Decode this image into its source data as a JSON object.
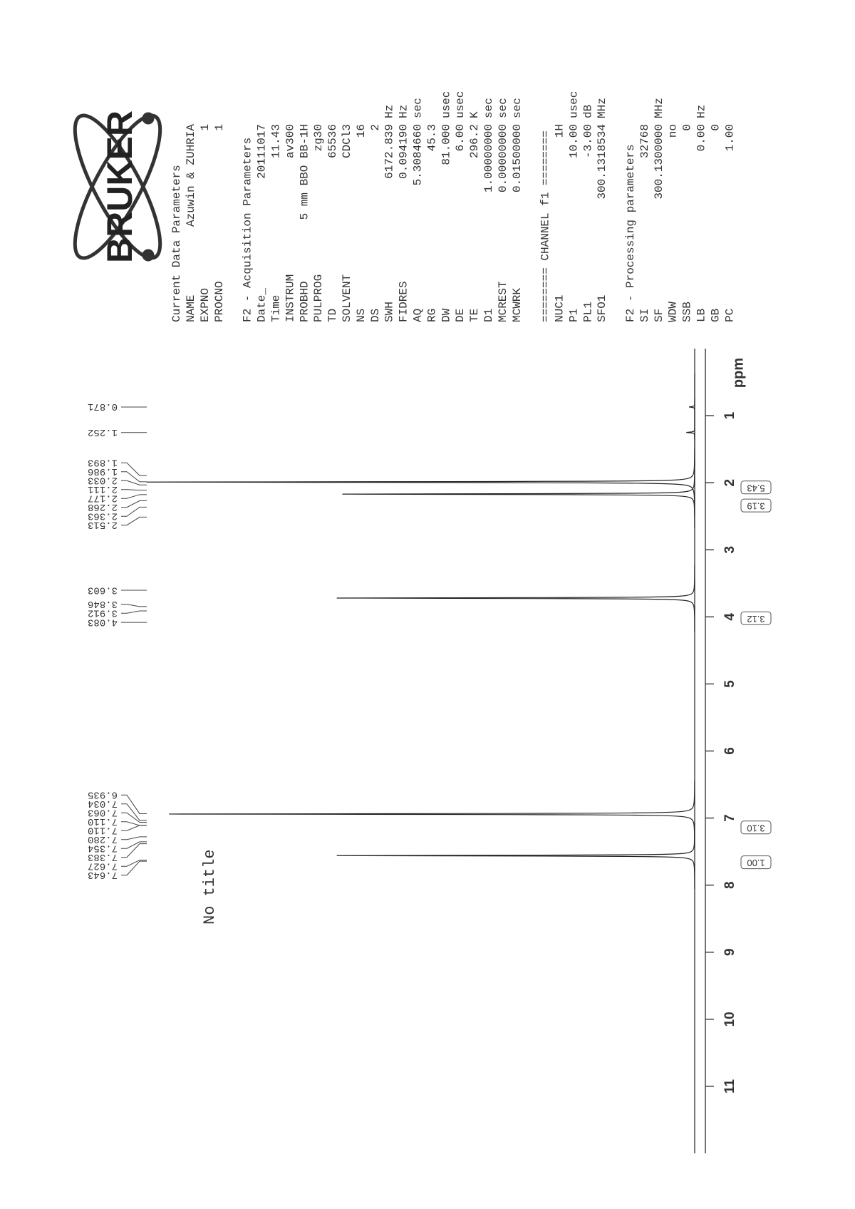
{
  "chart_data": {
    "type": "nmr",
    "title": "No title",
    "x_label": "ppm",
    "xlim": [
      12,
      0
    ],
    "xticks": [
      11,
      10,
      9,
      8,
      7,
      6,
      5,
      4,
      3,
      2,
      1
    ],
    "ylim": [
      0,
      100
    ],
    "color": "#222222",
    "series": [
      {
        "x": [
          0.87,
          1.25,
          1.99,
          2.17,
          3.72,
          6.94,
          7.56
        ],
        "values": [
          1,
          1.5,
          98,
          63,
          64,
          94,
          64
        ]
      }
    ],
    "peak_labels": {
      "x": [
        0.871,
        1.252,
        1.893,
        1.986,
        2.033,
        2.111,
        2.177,
        2.268,
        2.363,
        2.513,
        3.603,
        3.846,
        3.912,
        4.083,
        6.935,
        7.034,
        7.063,
        7.11,
        7.11,
        7.28,
        7.354,
        7.383,
        7.643,
        7.627
      ],
      "value_labels": [
        "0.871",
        "1.252",
        "1.893",
        "1.986",
        "2.033",
        "2.111",
        "2.177",
        "2.268",
        "2.363",
        "2.513",
        "3.603",
        "3.846",
        "3.912",
        "4.083",
        "6.935",
        "7.034",
        "7.063",
        "7.110",
        "7.110",
        "7.280",
        "7.354",
        "7.383",
        "7.643",
        "7.627"
      ]
    },
    "integrals": {
      "x": [
        2.07,
        2.34,
        4.02,
        7.14,
        7.66
      ],
      "values": [
        5.43,
        3.19,
        3.12,
        3.1,
        1
      ],
      "value_labels": [
        "5.43",
        "3.19",
        "3.12",
        "3.10",
        "1.00"
      ]
    }
  },
  "logo": "BRUKER",
  "parameters": [
    {
      "title": "Current Data Parameters",
      "rows": [
        [
          "NAME",
          "Azuwin & ZUHRIA"
        ],
        [
          "EXPNO",
          "1"
        ],
        [
          "PROCNO",
          "1"
        ]
      ]
    },
    {
      "title": "F2 - Acquisition Parameters",
      "rows": [
        [
          "Date_",
          "20111017"
        ],
        [
          "Time",
          "11.43"
        ],
        [
          "INSTRUM",
          "av300"
        ],
        [
          "PROBHD",
          "5 mm BBO BB-1H"
        ],
        [
          "PULPROG",
          "zg30"
        ],
        [
          "TD",
          "65536"
        ],
        [
          "SOLVENT",
          "CDCl3"
        ],
        [
          "NS",
          "16"
        ],
        [
          "DS",
          "2"
        ],
        [
          "SWH",
          "6172.839",
          "Hz"
        ],
        [
          "FIDRES",
          "0.094190",
          "Hz"
        ],
        [
          "AQ",
          "5.3084660",
          "sec"
        ],
        [
          "RG",
          "45.3"
        ],
        [
          "DW",
          "81.000",
          "usec"
        ],
        [
          "DE",
          "6.00",
          "usec"
        ],
        [
          "TE",
          "296.2",
          "K"
        ],
        [
          "D1",
          "1.00000000",
          "sec"
        ],
        [
          "MCREST",
          "0.00000000",
          "sec"
        ],
        [
          "MCWRK",
          "0.01500000",
          "sec"
        ]
      ]
    },
    {
      "title": "======== CHANNEL f1 ========",
      "rows": [
        [
          "NUC1",
          "1H"
        ],
        [
          "P1",
          "10.00",
          "usec"
        ],
        [
          "PL1",
          "-3.00",
          "dB"
        ],
        [
          "SFO1",
          "300.1318534",
          "MHz"
        ]
      ]
    },
    {
      "title": "F2 - Processing parameters",
      "rows": [
        [
          "SI",
          "32768"
        ],
        [
          "SF",
          "300.1300000",
          "MHz"
        ],
        [
          "WDW",
          "no"
        ],
        [
          "SSB",
          "0"
        ],
        [
          "LB",
          "0.00",
          "Hz"
        ],
        [
          "GB",
          "0"
        ],
        [
          "PC",
          "1.00"
        ]
      ]
    }
  ]
}
